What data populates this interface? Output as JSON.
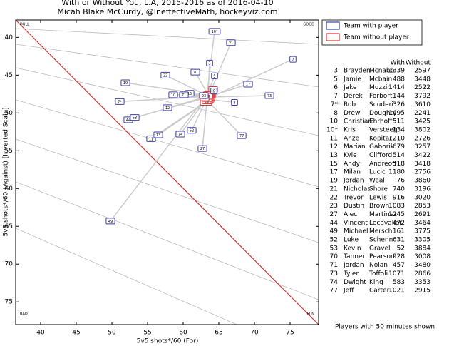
{
  "chart_data": {
    "type": "scatter",
    "title": "With or Without You, L.A, 2015-2016 as of 2016-04-10",
    "subtitle": "Micah Blake McCurdy, @IneffectiveMath, hockeyviz.com",
    "xlabel": "5v5 shots*/60 (For)",
    "ylabel": "5v5 shots*/60 (Against) [Inverted Scale]",
    "corners": [
      "DULL",
      "GOOD",
      "BAD",
      "FUN"
    ],
    "xlim": [
      36.5,
      79
    ],
    "ylim": [
      37.7,
      78
    ],
    "y_inverted": true,
    "xticks": [
      40,
      45,
      50,
      55,
      60,
      65,
      70,
      75
    ],
    "yticks": [
      40,
      45,
      50,
      55,
      60,
      65,
      70,
      75
    ],
    "legend": "upper right",
    "series": [
      {
        "name": "Team with player",
        "color": "#3a3fa8",
        "x": [
          63.7,
          64.4,
          64.3,
          75.4,
          51.1,
          67.2,
          58.6,
          64.4,
          55.5,
          57.8,
          56.5,
          60.9,
          69.1,
          51.9,
          66.7,
          57.5,
          62.9,
          62.7,
          52.3,
          49.8,
          61.2,
          53.2,
          61.7,
          60.1,
          72.1,
          59.6,
          68.2
        ],
        "values": [
          43.4,
          45.1,
          47.1,
          42.9,
          48.5,
          48.6,
          47.6,
          39.2,
          53.4,
          49.3,
          52.9,
          47.4,
          46.2,
          46.0,
          40.7,
          45.0,
          47.7,
          54.7,
          50.9,
          64.3,
          52.3,
          50.6,
          44.6,
          47.6,
          47.7,
          52.8,
          53.0
        ]
      },
      {
        "name": "Team without player",
        "color": "#e03535",
        "x": [
          63.5,
          63.2,
          63.3,
          63.0,
          63.6,
          62.8,
          63.8,
          63.2,
          63.7,
          63.4,
          63.5,
          63.6,
          63.1,
          63.9,
          63.3,
          63.8,
          64.2,
          63.4,
          63.7,
          63.3,
          63.5,
          63.6,
          63.5,
          63.4,
          63.0,
          63.5,
          63.0
        ],
        "values": [
          47.5,
          48.0,
          48.2,
          48.3,
          47.8,
          48.1,
          47.6,
          48.6,
          48.2,
          47.9,
          48.4,
          48.0,
          48.0,
          47.7,
          48.4,
          47.9,
          46.9,
          47.6,
          47.7,
          47.7,
          47.7,
          47.9,
          47.6,
          48.1,
          47.9,
          47.8,
          48.0
        ]
      }
    ]
  },
  "table": {
    "headers": [
      "With",
      "Without"
    ],
    "rows": [
      [
        "3",
        "Brayden",
        "Mcnabb",
        1339,
        2597
      ],
      [
        "5",
        "Jamie",
        "Mcbain",
        488,
        3448
      ],
      [
        "6",
        "Jake",
        "Muzzin",
        1414,
        2522
      ],
      [
        "7",
        "Derek",
        "Forbort",
        144,
        3792
      ],
      [
        "7*",
        "Rob",
        "Scuderi",
        326,
        3610
      ],
      [
        "8",
        "Drew",
        "Doughty",
        1695,
        2241
      ],
      [
        "10",
        "Christian",
        "Ehrhoff",
        511,
        3425
      ],
      [
        "10*",
        "Kris",
        "Versteeg",
        134,
        3802
      ],
      [
        "11",
        "Anze",
        "Kopitar",
        1210,
        2726
      ],
      [
        "12",
        "Marian",
        "Gaborik",
        679,
        3257
      ],
      [
        "13",
        "Kyle",
        "Clifford",
        514,
        3422
      ],
      [
        "15",
        "Andy",
        "Andreoff",
        518,
        3418
      ],
      [
        "17",
        "Milan",
        "Lucic",
        1180,
        2756
      ],
      [
        "19",
        "Jordan",
        "Weal",
        76,
        3860
      ],
      [
        "21",
        "Nicholas",
        "Shore",
        740,
        3196
      ],
      [
        "22",
        "Trevor",
        "Lewis",
        916,
        3020
      ],
      [
        "23",
        "Dustin",
        "Brown",
        1083,
        2853
      ],
      [
        "27",
        "Alec",
        "Martinez",
        1245,
        2691
      ],
      [
        "44",
        "Vincent",
        "Lecavalier",
        472,
        3464
      ],
      [
        "49",
        "Michael",
        "Mersch",
        161,
        3775
      ],
      [
        "52",
        "Luke",
        "Schenn",
        631,
        3305
      ],
      [
        "53",
        "Kevin",
        "Gravel",
        52,
        3884
      ],
      [
        "70",
        "Tanner",
        "Pearson",
        928,
        3008
      ],
      [
        "71",
        "Jordan",
        "Nolan",
        457,
        3480
      ],
      [
        "73",
        "Tyler",
        "Toffoli",
        1071,
        2866
      ],
      [
        "74",
        "Dwight",
        "King",
        583,
        3353
      ],
      [
        "77",
        "Jeff",
        "Carter",
        1021,
        2915
      ]
    ],
    "note": "Players with 50 minutes shown"
  }
}
